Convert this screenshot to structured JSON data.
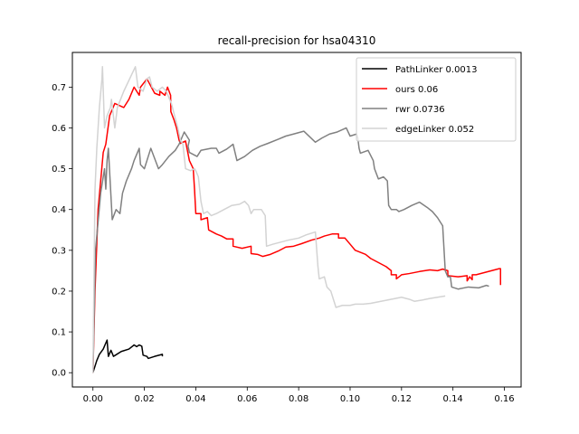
{
  "chart_data": {
    "type": "line",
    "title": "recall-precision for hsa04310",
    "xlabel": "",
    "ylabel": "",
    "xlim": [
      -0.008,
      0.1665
    ],
    "ylim": [
      -0.035,
      0.785
    ],
    "xticks": [
      0.0,
      0.02,
      0.04,
      0.06,
      0.08,
      0.1,
      0.12,
      0.14,
      0.16
    ],
    "xtick_labels": [
      "0.00",
      "0.02",
      "0.04",
      "0.06",
      "0.08",
      "0.10",
      "0.12",
      "0.14",
      "0.16"
    ],
    "yticks": [
      0.0,
      0.1,
      0.2,
      0.3,
      0.4,
      0.5,
      0.6,
      0.7
    ],
    "ytick_labels": [
      "0.0",
      "0.1",
      "0.2",
      "0.3",
      "0.4",
      "0.5",
      "0.6",
      "0.7"
    ],
    "grid": false,
    "legend_position": "top-right",
    "series": [
      {
        "name": "PathLinker 0.0013",
        "color": "#000000",
        "points": [
          [
            0.0,
            0.0
          ],
          [
            0.0015,
            0.03
          ],
          [
            0.0025,
            0.045
          ],
          [
            0.004,
            0.058
          ],
          [
            0.0055,
            0.08
          ],
          [
            0.006,
            0.04
          ],
          [
            0.007,
            0.055
          ],
          [
            0.008,
            0.04
          ],
          [
            0.011,
            0.052
          ],
          [
            0.014,
            0.058
          ],
          [
            0.016,
            0.068
          ],
          [
            0.017,
            0.064
          ],
          [
            0.018,
            0.068
          ],
          [
            0.019,
            0.065
          ],
          [
            0.0195,
            0.043
          ],
          [
            0.021,
            0.04
          ],
          [
            0.0215,
            0.035
          ],
          [
            0.024,
            0.04
          ],
          [
            0.027,
            0.045
          ],
          [
            0.027,
            0.04
          ]
        ]
      },
      {
        "name": "ours 0.06",
        "color": "#ff0000",
        "points": [
          [
            0.0,
            0.0
          ],
          [
            0.0008,
            0.2
          ],
          [
            0.002,
            0.4
          ],
          [
            0.003,
            0.47
          ],
          [
            0.004,
            0.54
          ],
          [
            0.005,
            0.56
          ],
          [
            0.0065,
            0.63
          ],
          [
            0.0085,
            0.66
          ],
          [
            0.012,
            0.65
          ],
          [
            0.014,
            0.67
          ],
          [
            0.016,
            0.7
          ],
          [
            0.018,
            0.68
          ],
          [
            0.0185,
            0.7
          ],
          [
            0.021,
            0.72
          ],
          [
            0.024,
            0.685
          ],
          [
            0.026,
            0.68
          ],
          [
            0.026,
            0.69
          ],
          [
            0.028,
            0.68
          ],
          [
            0.029,
            0.7
          ],
          [
            0.0302,
            0.68
          ],
          [
            0.0303,
            0.64
          ],
          [
            0.0315,
            0.62
          ],
          [
            0.0325,
            0.6
          ],
          [
            0.0335,
            0.57
          ],
          [
            0.034,
            0.562
          ],
          [
            0.036,
            0.568
          ],
          [
            0.0375,
            0.52
          ],
          [
            0.039,
            0.5
          ],
          [
            0.0395,
            0.45
          ],
          [
            0.04,
            0.39
          ],
          [
            0.042,
            0.39
          ],
          [
            0.042,
            0.375
          ],
          [
            0.0445,
            0.38
          ],
          [
            0.045,
            0.35
          ],
          [
            0.048,
            0.34
          ],
          [
            0.05,
            0.335
          ],
          [
            0.052,
            0.328
          ],
          [
            0.0545,
            0.328
          ],
          [
            0.0545,
            0.31
          ],
          [
            0.058,
            0.305
          ],
          [
            0.0615,
            0.31
          ],
          [
            0.0615,
            0.292
          ],
          [
            0.064,
            0.29
          ],
          [
            0.066,
            0.285
          ],
          [
            0.069,
            0.29
          ],
          [
            0.072,
            0.298
          ],
          [
            0.075,
            0.308
          ],
          [
            0.078,
            0.31
          ],
          [
            0.081,
            0.316
          ],
          [
            0.085,
            0.325
          ],
          [
            0.088,
            0.33
          ],
          [
            0.09,
            0.335
          ],
          [
            0.093,
            0.34
          ],
          [
            0.0955,
            0.34
          ],
          [
            0.0955,
            0.33
          ],
          [
            0.098,
            0.33
          ],
          [
            0.1,
            0.315
          ],
          [
            0.102,
            0.3
          ],
          [
            0.104,
            0.295
          ],
          [
            0.106,
            0.29
          ],
          [
            0.108,
            0.28
          ],
          [
            0.111,
            0.27
          ],
          [
            0.114,
            0.26
          ],
          [
            0.116,
            0.25
          ],
          [
            0.116,
            0.24
          ],
          [
            0.118,
            0.24
          ],
          [
            0.118,
            0.23
          ],
          [
            0.12,
            0.24
          ],
          [
            0.123,
            0.243
          ],
          [
            0.127,
            0.248
          ],
          [
            0.131,
            0.252
          ],
          [
            0.134,
            0.25
          ],
          [
            0.136,
            0.254
          ],
          [
            0.138,
            0.25
          ],
          [
            0.138,
            0.238
          ],
          [
            0.142,
            0.235
          ],
          [
            0.1455,
            0.238
          ],
          [
            0.1455,
            0.225
          ],
          [
            0.1465,
            0.235
          ],
          [
            0.1475,
            0.228
          ],
          [
            0.1475,
            0.24
          ],
          [
            0.149,
            0.24
          ],
          [
            0.152,
            0.245
          ],
          [
            0.155,
            0.25
          ],
          [
            0.158,
            0.255
          ],
          [
            0.1585,
            0.255
          ],
          [
            0.1585,
            0.215
          ]
        ]
      },
      {
        "name": "rwr 0.0736",
        "color": "#808080",
        "points": [
          [
            0.0,
            0.0
          ],
          [
            0.001,
            0.3
          ],
          [
            0.003,
            0.44
          ],
          [
            0.0045,
            0.5
          ],
          [
            0.005,
            0.45
          ],
          [
            0.0055,
            0.52
          ],
          [
            0.006,
            0.55
          ],
          [
            0.0075,
            0.375
          ],
          [
            0.009,
            0.4
          ],
          [
            0.0105,
            0.39
          ],
          [
            0.0115,
            0.44
          ],
          [
            0.013,
            0.47
          ],
          [
            0.015,
            0.5
          ],
          [
            0.016,
            0.52
          ],
          [
            0.018,
            0.55
          ],
          [
            0.0185,
            0.51
          ],
          [
            0.02,
            0.5
          ],
          [
            0.0215,
            0.53
          ],
          [
            0.0225,
            0.55
          ],
          [
            0.0255,
            0.5
          ],
          [
            0.027,
            0.51
          ],
          [
            0.0295,
            0.53
          ],
          [
            0.032,
            0.545
          ],
          [
            0.0335,
            0.56
          ],
          [
            0.0355,
            0.59
          ],
          [
            0.0375,
            0.57
          ],
          [
            0.037,
            0.555
          ],
          [
            0.0375,
            0.54
          ],
          [
            0.039,
            0.535
          ],
          [
            0.0405,
            0.53
          ],
          [
            0.042,
            0.545
          ],
          [
            0.046,
            0.55
          ],
          [
            0.048,
            0.55
          ],
          [
            0.049,
            0.538
          ],
          [
            0.052,
            0.548
          ],
          [
            0.0545,
            0.56
          ],
          [
            0.056,
            0.52
          ],
          [
            0.059,
            0.53
          ],
          [
            0.062,
            0.545
          ],
          [
            0.065,
            0.555
          ],
          [
            0.068,
            0.562
          ],
          [
            0.072,
            0.572
          ],
          [
            0.075,
            0.58
          ],
          [
            0.078,
            0.585
          ],
          [
            0.082,
            0.592
          ],
          [
            0.0865,
            0.565
          ],
          [
            0.089,
            0.575
          ],
          [
            0.092,
            0.585
          ],
          [
            0.095,
            0.59
          ],
          [
            0.0985,
            0.6
          ],
          [
            0.1,
            0.58
          ],
          [
            0.1025,
            0.585
          ],
          [
            0.103,
            0.575
          ],
          [
            0.1035,
            0.55
          ],
          [
            0.104,
            0.538
          ],
          [
            0.107,
            0.545
          ],
          [
            0.109,
            0.52
          ],
          [
            0.1095,
            0.5
          ],
          [
            0.111,
            0.475
          ],
          [
            0.113,
            0.48
          ],
          [
            0.1145,
            0.47
          ],
          [
            0.115,
            0.41
          ],
          [
            0.116,
            0.4
          ],
          [
            0.118,
            0.4
          ],
          [
            0.119,
            0.395
          ],
          [
            0.121,
            0.4
          ],
          [
            0.124,
            0.41
          ],
          [
            0.127,
            0.418
          ],
          [
            0.13,
            0.405
          ],
          [
            0.132,
            0.395
          ],
          [
            0.134,
            0.38
          ],
          [
            0.136,
            0.36
          ],
          [
            0.137,
            0.25
          ],
          [
            0.138,
            0.235
          ],
          [
            0.139,
            0.235
          ],
          [
            0.1395,
            0.21
          ],
          [
            0.142,
            0.205
          ],
          [
            0.146,
            0.21
          ],
          [
            0.15,
            0.208
          ],
          [
            0.153,
            0.214
          ],
          [
            0.154,
            0.212
          ]
        ]
      },
      {
        "name": "edgeLinker 0.052",
        "color": "#d3d3d3",
        "points": [
          [
            0.0,
            0.0
          ],
          [
            0.0008,
            0.45
          ],
          [
            0.0015,
            0.55
          ],
          [
            0.0025,
            0.65
          ],
          [
            0.0035,
            0.72
          ],
          [
            0.0037,
            0.75
          ],
          [
            0.0045,
            0.6
          ],
          [
            0.0055,
            0.63
          ],
          [
            0.0068,
            0.65
          ],
          [
            0.0072,
            0.67
          ],
          [
            0.0085,
            0.6
          ],
          [
            0.0095,
            0.65
          ],
          [
            0.012,
            0.69
          ],
          [
            0.015,
            0.73
          ],
          [
            0.0165,
            0.75
          ],
          [
            0.0175,
            0.7
          ],
          [
            0.0195,
            0.69
          ],
          [
            0.021,
            0.72
          ],
          [
            0.022,
            0.725
          ],
          [
            0.023,
            0.7
          ],
          [
            0.025,
            0.69
          ],
          [
            0.027,
            0.7
          ],
          [
            0.0285,
            0.69
          ],
          [
            0.0305,
            0.66
          ],
          [
            0.033,
            0.6
          ],
          [
            0.034,
            0.57
          ],
          [
            0.035,
            0.56
          ],
          [
            0.036,
            0.5
          ],
          [
            0.038,
            0.495
          ],
          [
            0.0395,
            0.5
          ],
          [
            0.04,
            0.495
          ],
          [
            0.041,
            0.48
          ],
          [
            0.042,
            0.42
          ],
          [
            0.043,
            0.39
          ],
          [
            0.0445,
            0.395
          ],
          [
            0.046,
            0.385
          ],
          [
            0.048,
            0.39
          ],
          [
            0.051,
            0.4
          ],
          [
            0.054,
            0.41
          ],
          [
            0.057,
            0.413
          ],
          [
            0.059,
            0.42
          ],
          [
            0.0605,
            0.41
          ],
          [
            0.0615,
            0.39
          ],
          [
            0.0625,
            0.4
          ],
          [
            0.0655,
            0.4
          ],
          [
            0.067,
            0.385
          ],
          [
            0.0675,
            0.31
          ],
          [
            0.07,
            0.315
          ],
          [
            0.073,
            0.32
          ],
          [
            0.076,
            0.325
          ],
          [
            0.08,
            0.33
          ],
          [
            0.083,
            0.338
          ],
          [
            0.0865,
            0.345
          ],
          [
            0.0875,
            0.26
          ],
          [
            0.088,
            0.23
          ],
          [
            0.09,
            0.235
          ],
          [
            0.091,
            0.21
          ],
          [
            0.0925,
            0.2
          ],
          [
            0.0935,
            0.18
          ],
          [
            0.0945,
            0.16
          ],
          [
            0.097,
            0.165
          ],
          [
            0.1,
            0.165
          ],
          [
            0.102,
            0.168
          ],
          [
            0.105,
            0.168
          ],
          [
            0.108,
            0.17
          ],
          [
            0.112,
            0.175
          ],
          [
            0.116,
            0.18
          ],
          [
            0.12,
            0.185
          ],
          [
            0.123,
            0.18
          ],
          [
            0.125,
            0.175
          ],
          [
            0.128,
            0.178
          ],
          [
            0.131,
            0.182
          ],
          [
            0.134,
            0.185
          ],
          [
            0.137,
            0.188
          ]
        ]
      }
    ]
  }
}
